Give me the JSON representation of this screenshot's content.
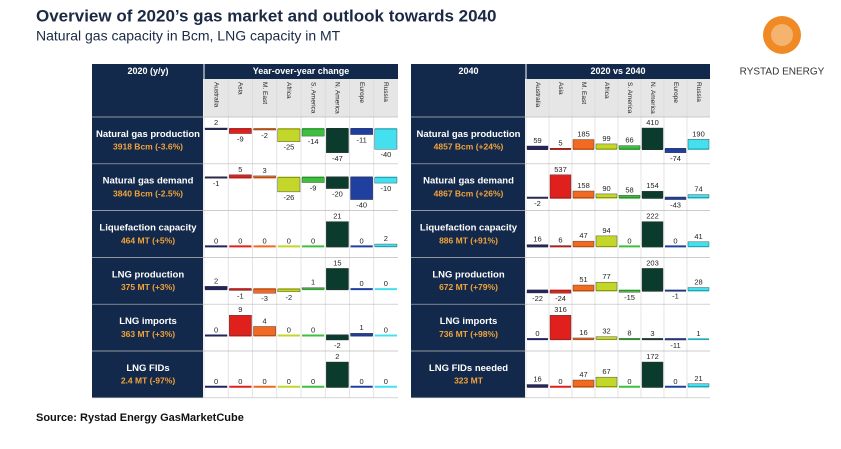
{
  "header": {
    "title": "Overview of 2020’s gas market and outlook towards 2040",
    "subtitle": "Natural gas capacity in Bcm, LNG capacity in MT",
    "logo": "RYSTAD ENERGY"
  },
  "regions": [
    "Australia",
    "Asia",
    "M. East",
    "Africa",
    "S. America",
    "N. America",
    "Europe",
    "Russia"
  ],
  "colors": [
    "#23235e",
    "#e0201c",
    "#f26a21",
    "#c3d62a",
    "#3fbf3f",
    "#0b3b2c",
    "#2040a0",
    "#45e0f0"
  ],
  "panels": [
    {
      "header_left": "2020 (y/y)",
      "header_right": "Year-over-year change",
      "rows": [
        {
          "label": "Natural gas production",
          "detail": "3918 Bcm (-3.6%)",
          "values": [
            2,
            -9,
            -2,
            -25,
            -14,
            -47,
            -11,
            -40
          ]
        },
        {
          "label": "Natural gas demand",
          "detail": "3840 Bcm (-2.5%)",
          "values": [
            -1,
            5,
            3,
            -26,
            -9,
            -20,
            -40,
            -10
          ]
        },
        {
          "label": "Liquefaction capacity",
          "detail": "464 MT (+5%)",
          "values": [
            0,
            0,
            0,
            0,
            0,
            21,
            0,
            2
          ]
        },
        {
          "label": "LNG production",
          "detail": "375 MT (+3%)",
          "values": [
            2,
            -1,
            -3,
            -2,
            1,
            15,
            0,
            0
          ]
        },
        {
          "label": "LNG imports",
          "detail": "363 MT (+3%)",
          "values": [
            0,
            9,
            4,
            0,
            0,
            -2,
            1,
            0
          ]
        },
        {
          "label": "LNG FIDs",
          "detail": "2.4 MT (-97%)",
          "values": [
            0,
            0,
            0,
            0,
            0,
            2,
            0,
            0
          ]
        }
      ]
    },
    {
      "header_left": "2040",
      "header_right": "2020 vs 2040",
      "rows": [
        {
          "label": "Natural gas production",
          "detail": "4857 Bcm (+24%)",
          "values": [
            59,
            5,
            185,
            99,
            66,
            410,
            -74,
            190
          ]
        },
        {
          "label": "Natural gas demand",
          "detail": "4867 Bcm (+26%)",
          "values": [
            -2,
            537,
            158,
            90,
            58,
            154,
            -43,
            74
          ]
        },
        {
          "label": "Liquefaction capacity",
          "detail": "886 MT (+91%)",
          "values": [
            16,
            6,
            47,
            94,
            0,
            222,
            0,
            41
          ]
        },
        {
          "label": "LNG production",
          "detail": "672 MT (+79%)",
          "values": [
            -22,
            -24,
            51,
            77,
            -15,
            203,
            -1,
            28
          ]
        },
        {
          "label": "LNG imports",
          "detail": "736 MT (+98%)",
          "values": [
            0,
            316,
            16,
            32,
            8,
            3,
            -11,
            1
          ]
        },
        {
          "label": "LNG FIDs needed",
          "detail": "323 MT",
          "values": [
            16,
            0,
            47,
            67,
            0,
            172,
            0,
            21
          ]
        }
      ]
    }
  ],
  "source": "Source: Rystad Energy GasMarketCube"
}
